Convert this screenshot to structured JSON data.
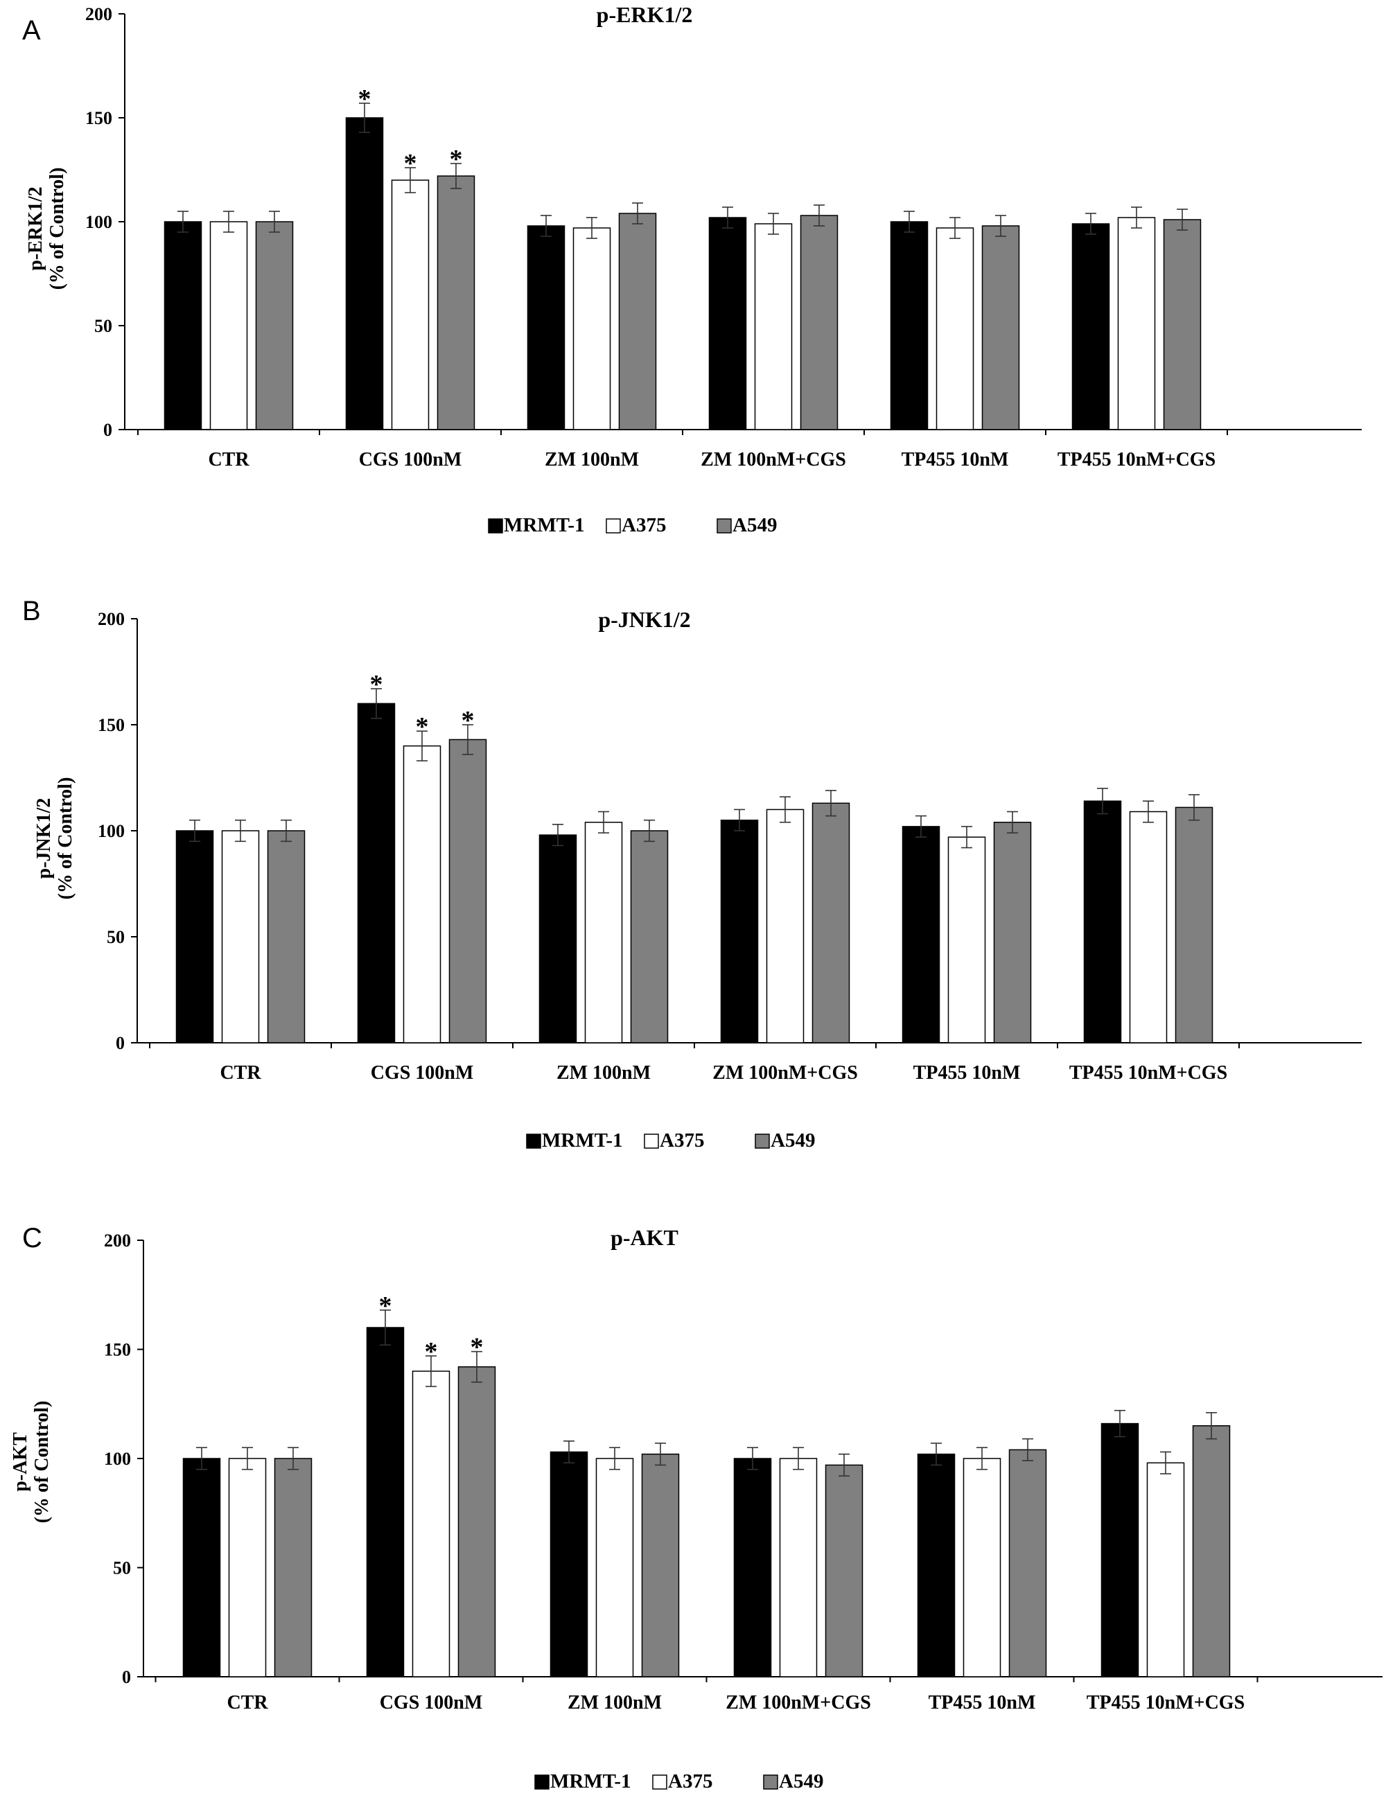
{
  "colors": {
    "MRMT-1": "#000000",
    "A375": "#ffffff",
    "A549": "#808080"
  },
  "chart_data": [
    {
      "type": "bar",
      "panel": "A",
      "title": "p-ERK1/2",
      "ylabel": [
        "p-ERK1/2",
        "(% of Control)"
      ],
      "xlabel": "",
      "ylim": [
        0,
        200
      ],
      "yticks": [
        0,
        50,
        100,
        150,
        200
      ],
      "categories": [
        "CTR",
        "CGS 100nM",
        "ZM 100nM",
        "ZM 100nM+CGS",
        "TP455 10nM",
        "TP455 10nM+CGS"
      ],
      "series": [
        {
          "name": "MRMT-1",
          "values": [
            100,
            150,
            98,
            102,
            100,
            99
          ],
          "errors": [
            5,
            7,
            5,
            5,
            5,
            5
          ],
          "significant": [
            false,
            true,
            false,
            false,
            false,
            false
          ]
        },
        {
          "name": "A375",
          "values": [
            100,
            120,
            97,
            99,
            97,
            102
          ],
          "errors": [
            5,
            6,
            5,
            5,
            5,
            5
          ],
          "significant": [
            false,
            true,
            false,
            false,
            false,
            false
          ]
        },
        {
          "name": "A549",
          "values": [
            100,
            122,
            104,
            103,
            98,
            101
          ],
          "errors": [
            5,
            6,
            5,
            5,
            5,
            5
          ],
          "significant": [
            false,
            true,
            false,
            false,
            false,
            false
          ]
        }
      ],
      "legend": [
        "MRMT-1",
        "A375",
        "A549"
      ],
      "significance_marker": "*"
    },
    {
      "type": "bar",
      "panel": "B",
      "title": "p-JNK1/2",
      "ylabel": [
        "p-JNK1/2",
        "(% of Control)"
      ],
      "xlabel": "",
      "ylim": [
        0,
        200
      ],
      "yticks": [
        0,
        50,
        100,
        150,
        200
      ],
      "categories": [
        "CTR",
        "CGS 100nM",
        "ZM 100nM",
        "ZM 100nM+CGS",
        "TP455 10nM",
        "TP455 10nM+CGS"
      ],
      "series": [
        {
          "name": "MRMT-1",
          "values": [
            100,
            160,
            98,
            105,
            102,
            114
          ],
          "errors": [
            5,
            7,
            5,
            5,
            5,
            6
          ],
          "significant": [
            false,
            true,
            false,
            false,
            false,
            false
          ]
        },
        {
          "name": "A375",
          "values": [
            100,
            140,
            104,
            110,
            97,
            109
          ],
          "errors": [
            5,
            7,
            5,
            6,
            5,
            5
          ],
          "significant": [
            false,
            true,
            false,
            false,
            false,
            false
          ]
        },
        {
          "name": "A549",
          "values": [
            100,
            143,
            100,
            113,
            104,
            111
          ],
          "errors": [
            5,
            7,
            5,
            6,
            5,
            6
          ],
          "significant": [
            false,
            true,
            false,
            false,
            false,
            false
          ]
        }
      ],
      "legend": [
        "MRMT-1",
        "A375",
        "A549"
      ],
      "significance_marker": "*"
    },
    {
      "type": "bar",
      "panel": "C",
      "title": "p-AKT",
      "ylabel": [
        "p-AKT",
        "(% of Control)"
      ],
      "xlabel": "",
      "ylim": [
        0,
        200
      ],
      "yticks": [
        0,
        50,
        100,
        150,
        200
      ],
      "categories": [
        "CTR",
        "CGS 100nM",
        "ZM 100nM",
        "ZM 100nM+CGS",
        "TP455 10nM",
        "TP455 10nM+CGS"
      ],
      "series": [
        {
          "name": "MRMT-1",
          "values": [
            100,
            160,
            103,
            100,
            102,
            116
          ],
          "errors": [
            5,
            8,
            5,
            5,
            5,
            6
          ],
          "significant": [
            false,
            true,
            false,
            false,
            false,
            false
          ]
        },
        {
          "name": "A375",
          "values": [
            100,
            140,
            100,
            100,
            100,
            98
          ],
          "errors": [
            5,
            7,
            5,
            5,
            5,
            5
          ],
          "significant": [
            false,
            true,
            false,
            false,
            false,
            false
          ]
        },
        {
          "name": "A549",
          "values": [
            100,
            142,
            102,
            97,
            104,
            115
          ],
          "errors": [
            5,
            7,
            5,
            5,
            5,
            6
          ],
          "significant": [
            false,
            true,
            false,
            false,
            false,
            false
          ]
        }
      ],
      "legend": [
        "MRMT-1",
        "A375",
        "A549"
      ],
      "significance_marker": "*"
    }
  ]
}
